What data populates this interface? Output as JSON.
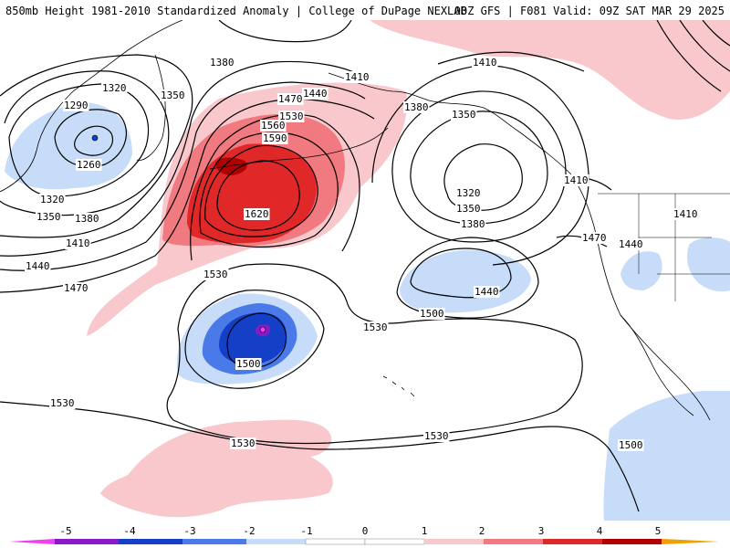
{
  "header": {
    "title": "850mb Height 1981-2010 Standardized Anomaly | College of DuPage NEXLAB",
    "run_info": "00Z GFS | F081 Valid: 09Z SAT MAR 29 2025"
  },
  "colors": {
    "neg5": "#f040f0",
    "neg4": "#8a1ac8",
    "neg3": "#1440c8",
    "neg2": "#4a7ae8",
    "neg1": "#c6dcf8",
    "pos1": "#f8c8cc",
    "pos2": "#f07a80",
    "pos3": "#e02828",
    "pos4": "#b00000",
    "pos5": "#f0a000",
    "contour": "#000000",
    "coast": "#000000"
  },
  "contour_labels": {
    "l1320_nw": "1320",
    "l1290": "1290",
    "l1260": "1260",
    "l1350_nw": "1350",
    "l1380_n": "1380",
    "l1410_n": "1410",
    "l1440_n": "1440",
    "l1470_n": "1470",
    "l1530_n": "1530",
    "l1560": "1560",
    "l1590": "1590",
    "l1620": "1620",
    "l1320_w": "1320",
    "l1350_w": "1350",
    "l1380_w": "1380",
    "l1410_w": "1410",
    "l1440_w": "1440",
    "l1470_w": "1470",
    "l1380_gulf": "1380",
    "l1350_gulf": "1350",
    "l1320_gulf": "1320",
    "l1350_gulf2": "1350",
    "l1380_gulf2": "1380",
    "l1410_ne": "1410",
    "l1410_bc": "1410",
    "l1470_coast": "1470",
    "l1440_coast": "1440",
    "l1410_rockies": "1410",
    "l1440_low": "1440",
    "l1500_low": "1500",
    "l1530_mid": "1530",
    "l1530_sw": "1530",
    "l1500_hi": "1500",
    "l1530_w": "1530",
    "l1530_s": "1530",
    "l1530_se": "1530",
    "l1500_se": "1500"
  },
  "legend": {
    "ticks": [
      "-5",
      "-4",
      "-3",
      "-2",
      "-1",
      "0",
      "1",
      "2",
      "3",
      "4",
      "5"
    ]
  }
}
